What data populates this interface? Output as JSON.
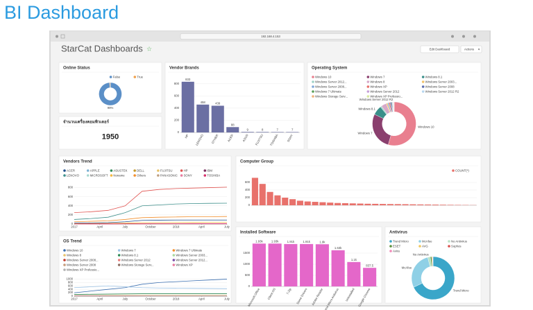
{
  "header": {
    "title": "BI Dashboard"
  },
  "browser": {
    "url": "192.168.4.153"
  },
  "dashboard": {
    "title": "StarCat Dashboards",
    "buttons": [
      "Edit Dashboard",
      "Actions"
    ]
  },
  "chart_data": [
    {
      "type": "pie",
      "title": "Online Status",
      "labels": [
        "False",
        "True"
      ],
      "values": [
        99,
        1
      ],
      "colors": [
        "#5b8fc7",
        "#f0a04b"
      ],
      "annotation": "99%"
    },
    {
      "type": "number",
      "title": "จำนวนเครื่องคอมพิวเตอร์",
      "value": 1950
    },
    {
      "type": "bar",
      "title": "Vendor Brands",
      "categories": [
        "HP",
        "LENOVO",
        "OTHER",
        "ACER",
        "ASUS",
        "FUJITSU",
        "TOSHIBA",
        "SONY"
      ],
      "values": [
        833,
        458,
        439,
        88,
        9,
        8,
        7,
        7
      ],
      "color": "#6b6fa3",
      "ylim": [
        0,
        900
      ],
      "yticks": [
        0,
        200,
        400,
        600,
        800
      ]
    },
    {
      "type": "pie",
      "title": "Operating System",
      "labels": [
        "Windows 10",
        "Windows 7",
        "Windows 8.1",
        "Windows Server 2012...",
        "Windows 8",
        "Windows Server 2003...",
        "Windows Server 2008...",
        "Windows XP",
        "Windows Server 2008",
        "Windows 7 Ultimate",
        "Windows Server 2012",
        "Windows Server 2012 R2",
        "Windows Storage Serv...",
        "Windows XP Professio..."
      ],
      "values": [
        55,
        28,
        7,
        1,
        4,
        1,
        1,
        1,
        1,
        0.5,
        0.5,
        0.5,
        0.3,
        0.2
      ],
      "colors": [
        "#e97f8f",
        "#8a3f6e",
        "#3a8f8a",
        "#9fd3c7",
        "#d7a9c9",
        "#f2c36b",
        "#7fa8d8",
        "#e8716b",
        "#5e6fb0",
        "#5aa05a",
        "#c7a0d8",
        "#b7d7f0",
        "#f0b37e",
        "#d8e8a0"
      ]
    },
    {
      "type": "line",
      "title": "Vendors Trend",
      "x": [
        0,
        2,
        4,
        6,
        8,
        10,
        12,
        14,
        16,
        18
      ],
      "xlim": [
        0,
        18
      ],
      "xticks": [
        {
          "value": 0,
          "label": "2017"
        },
        {
          "value": 3,
          "label": "April"
        },
        {
          "value": 6,
          "label": "July"
        },
        {
          "value": 9,
          "label": "October"
        },
        {
          "value": 12,
          "label": "2018"
        },
        {
          "value": 15,
          "label": "April"
        },
        {
          "value": 18,
          "label": "July"
        }
      ],
      "ylim": [
        0,
        900
      ],
      "yticks": [
        0,
        200,
        400,
        600,
        800
      ],
      "series": [
        {
          "name": "ACER",
          "color": "#1f4e8c",
          "values": [
            20,
            25,
            30,
            50,
            80,
            85,
            88,
            88,
            88,
            88
          ]
        },
        {
          "name": "APPLE",
          "color": "#7fb3d5",
          "values": [
            2,
            2,
            3,
            3,
            4,
            4,
            4,
            5,
            5,
            5
          ]
        },
        {
          "name": "ASUSTEK",
          "color": "#2e8b57",
          "values": [
            3,
            3,
            4,
            5,
            7,
            8,
            8,
            9,
            9,
            9
          ]
        },
        {
          "name": "DELL",
          "color": "#c49a2c",
          "values": [
            5,
            6,
            7,
            8,
            9,
            9,
            9,
            10,
            10,
            10
          ]
        },
        {
          "name": "FUJITSU",
          "color": "#e8c36b",
          "values": [
            3,
            4,
            5,
            6,
            7,
            7,
            8,
            8,
            8,
            8
          ]
        },
        {
          "name": "HP",
          "color": "#e0524f",
          "values": [
            250,
            270,
            300,
            400,
            720,
            760,
            780,
            790,
            800,
            810
          ]
        },
        {
          "name": "IBM",
          "color": "#7b2d5e",
          "values": [
            1,
            1,
            1,
            2,
            2,
            2,
            2,
            2,
            2,
            2
          ]
        },
        {
          "name": "LENOVO",
          "color": "#3d8f8b",
          "values": [
            100,
            120,
            150,
            250,
            400,
            420,
            440,
            450,
            455,
            458
          ]
        },
        {
          "name": "MICROSOFT",
          "color": "#a8d8d0",
          "values": [
            2,
            2,
            3,
            3,
            3,
            4,
            4,
            4,
            4,
            4
          ]
        },
        {
          "name": "Noname",
          "color": "#f4b942",
          "values": [
            10,
            12,
            15,
            20,
            30,
            32,
            34,
            35,
            36,
            36
          ]
        },
        {
          "name": "Others",
          "color": "#f28e2b",
          "values": [
            50,
            60,
            70,
            100,
            140,
            150,
            155,
            160,
            160,
            165
          ]
        },
        {
          "name": "PANASONIC",
          "color": "#c0a080",
          "values": [
            1,
            1,
            2,
            2,
            2,
            3,
            3,
            3,
            3,
            3
          ]
        },
        {
          "name": "SONY",
          "color": "#e87ca0",
          "values": [
            2,
            3,
            3,
            4,
            5,
            6,
            6,
            7,
            7,
            7
          ]
        },
        {
          "name": "TOSHIBA",
          "color": "#d6336c",
          "values": [
            2,
            3,
            3,
            4,
            5,
            6,
            6,
            7,
            7,
            7
          ]
        }
      ]
    },
    {
      "type": "bar",
      "title": "Computer Group",
      "categories": [
        null,
        null,
        null,
        null,
        null,
        null,
        null,
        null,
        null,
        null,
        null,
        null,
        null,
        null,
        null,
        null,
        null,
        null,
        null,
        null,
        null,
        null,
        null,
        null,
        null,
        null,
        null,
        null,
        null,
        null
      ],
      "series": [
        {
          "name": "COUNT(*)",
          "color": "#e8716b",
          "values": [
            720,
            560,
            350,
            260,
            200,
            160,
            120,
            100,
            90,
            80,
            70,
            60,
            55,
            50,
            45,
            40,
            38,
            35,
            32,
            30,
            28,
            25,
            22,
            20,
            18,
            15,
            12,
            10,
            8,
            5
          ]
        }
      ],
      "ylim": [
        0,
        800
      ],
      "yticks": [
        0,
        200,
        400,
        600
      ]
    },
    {
      "type": "line",
      "title": "OS Trend",
      "x": [
        0,
        2,
        4,
        6,
        8,
        10,
        12,
        14,
        16,
        18
      ],
      "xlim": [
        0,
        18
      ],
      "xticks": [
        {
          "value": 0,
          "label": "2017"
        },
        {
          "value": 3,
          "label": "April"
        },
        {
          "value": 6,
          "label": "July"
        },
        {
          "value": 9,
          "label": "October"
        },
        {
          "value": 12,
          "label": "2018"
        },
        {
          "value": 15,
          "label": "April"
        },
        {
          "value": 18,
          "label": "July"
        }
      ],
      "ylim": [
        0,
        1100
      ],
      "yticks": [
        0,
        200,
        400,
        600,
        800,
        1000
      ],
      "series": [
        {
          "name": "Windows 10",
          "color": "#3b6fb0",
          "values": [
            200,
            300,
            400,
            500,
            700,
            800,
            850,
            900,
            950,
            1000
          ]
        },
        {
          "name": "Windows 7",
          "color": "#9cc3e6",
          "values": [
            500,
            550,
            600,
            550,
            500,
            480,
            470,
            460,
            450,
            440
          ]
        },
        {
          "name": "Windows 7 Ultimate",
          "color": "#f28e2b",
          "values": [
            2,
            2,
            2,
            2,
            2,
            2,
            2,
            2,
            2,
            2
          ]
        },
        {
          "name": "Windows 8",
          "color": "#e8c36b",
          "values": [
            40,
            42,
            44,
            45,
            46,
            46,
            46,
            46,
            46,
            46
          ]
        },
        {
          "name": "Windows 8.1",
          "color": "#2e8b57",
          "values": [
            100,
            110,
            120,
            130,
            140,
            140,
            140,
            140,
            140,
            140
          ]
        },
        {
          "name": "Windows Server 2003...",
          "color": "#a8d8a0",
          "values": [
            5,
            5,
            5,
            5,
            5,
            5,
            5,
            5,
            5,
            5
          ]
        },
        {
          "name": "Windows Server 2008...",
          "color": "#c0392b",
          "values": [
            8,
            8,
            8,
            9,
            9,
            9,
            9,
            9,
            9,
            9
          ]
        },
        {
          "name": "Windows Server 2012",
          "color": "#e87c7c",
          "values": [
            4,
            4,
            5,
            5,
            5,
            5,
            5,
            5,
            5,
            5
          ]
        },
        {
          "name": "Windows Server 2012...",
          "color": "#7b4ea8",
          "values": [
            6,
            6,
            7,
            7,
            7,
            7,
            7,
            7,
            7,
            7
          ]
        },
        {
          "name": "Windows Server 2008",
          "color": "#c49a7a",
          "values": [
            3,
            3,
            3,
            3,
            3,
            3,
            3,
            3,
            3,
            3
          ]
        },
        {
          "name": "Windows Storage Serv...",
          "color": "#8d6e63",
          "values": [
            1,
            1,
            1,
            1,
            1,
            1,
            1,
            1,
            1,
            1
          ]
        },
        {
          "name": "Windows XP",
          "color": "#e87ca0",
          "values": [
            30,
            28,
            26,
            24,
            22,
            20,
            18,
            16,
            15,
            14
          ]
        },
        {
          "name": "Windows XP Professio...",
          "color": "#b0b0b0",
          "values": [
            10,
            10,
            9,
            9,
            8,
            8,
            8,
            7,
            7,
            7
          ]
        }
      ]
    },
    {
      "type": "bar",
      "title": "Installed Software",
      "categories": [
        "Microsoft Office",
        "Client OS",
        "7-Zip",
        "Some Drivers",
        "Adobe Reader",
        "Trend Micro Antivirus",
        "Uninstalled",
        "Google Chrome"
      ],
      "values": [
        1930,
        1930,
        1910,
        1910,
        1900,
        1630,
        1100,
        837.5
      ],
      "value_labels": [
        "1.93k",
        "1.93k",
        "1.91k",
        "1.91k",
        "1.9k",
        "1.63k",
        "1.1k",
        "837.5"
      ],
      "color": "#e467c9",
      "ylim": [
        0,
        2000
      ],
      "yticks": [
        0,
        500,
        1000,
        1500
      ]
    },
    {
      "type": "pie",
      "title": "Antivirus",
      "labels": [
        "Trend Micro",
        "McAfee",
        "No Antivirus",
        "ESET",
        "AVG",
        "Sophos",
        "Avira"
      ],
      "values": [
        68,
        28,
        2,
        1,
        0.5,
        0.3,
        0.2
      ],
      "colors": [
        "#3aa6c9",
        "#8fd0e6",
        "#b9e3c6",
        "#5a8f3a",
        "#f0c75e",
        "#d9534f",
        "#f08ab8"
      ]
    }
  ]
}
